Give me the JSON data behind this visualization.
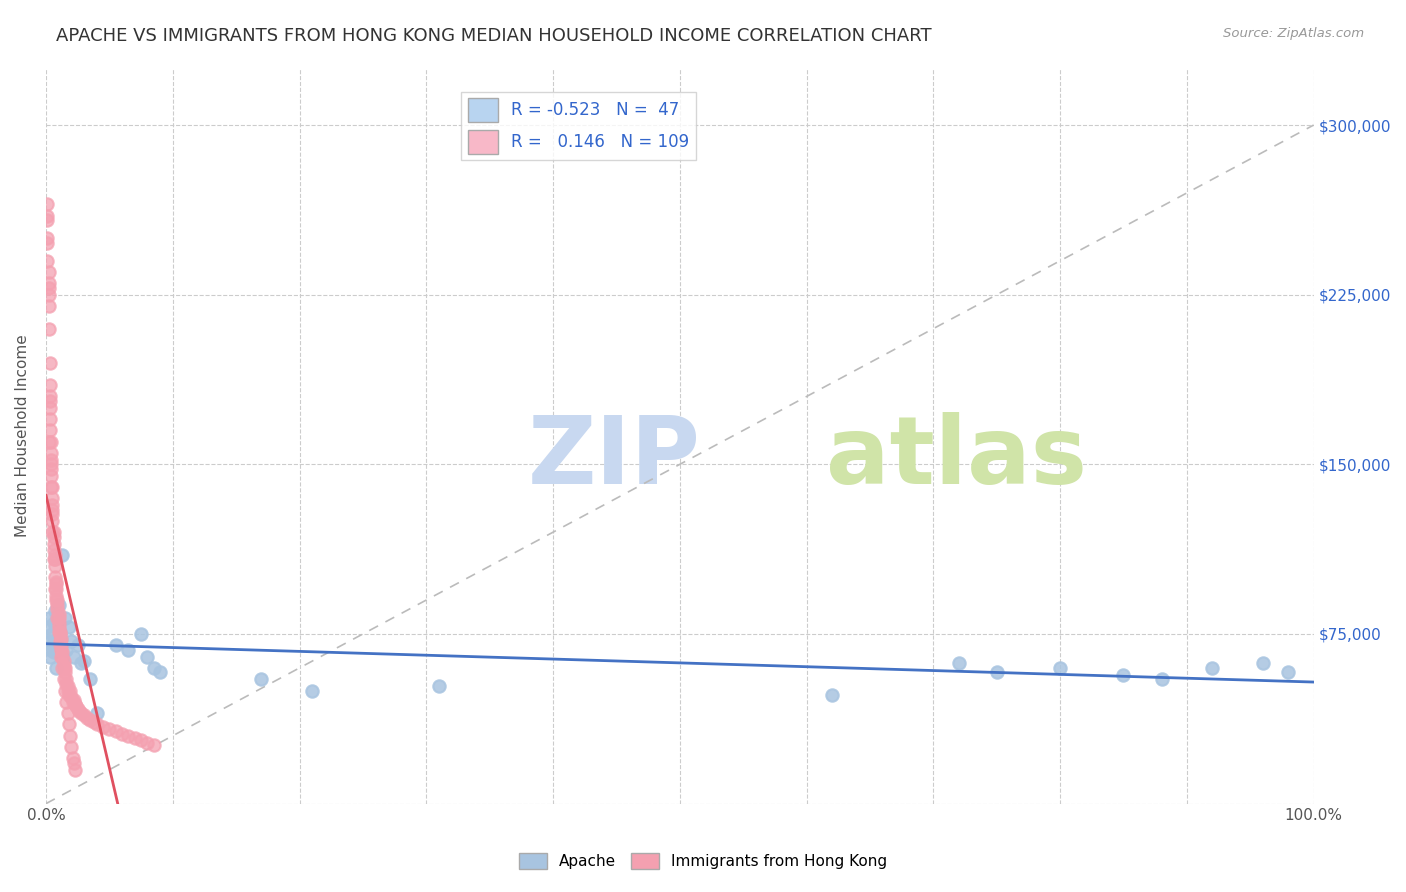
{
  "title": "APACHE VS IMMIGRANTS FROM HONG KONG MEDIAN HOUSEHOLD INCOME CORRELATION CHART",
  "source": "Source: ZipAtlas.com",
  "ylabel": "Median Household Income",
  "yticks": [
    0,
    75000,
    150000,
    225000,
    300000
  ],
  "ytick_labels": [
    "",
    "$75,000",
    "$150,000",
    "$225,000",
    "$300,000"
  ],
  "ylim": [
    0,
    325000
  ],
  "xlim": [
    0.0,
    1.0
  ],
  "apache_R": -0.523,
  "apache_N": 47,
  "hk_R": 0.146,
  "hk_N": 109,
  "apache_color": "#a8c4e0",
  "hk_color": "#f4a0b0",
  "apache_line_color": "#4472c4",
  "hk_line_color": "#e05060",
  "legend_box_apache": "#b8d4f0",
  "legend_box_hk": "#f8b8c8",
  "title_fontsize": 13,
  "axis_label_fontsize": 11,
  "tick_fontsize": 11,
  "watermark_zip": "ZIP",
  "watermark_atlas": "atlas",
  "watermark_color_zip": "#c8d8f0",
  "watermark_color_atlas": "#d0e4a8",
  "apache_x": [
    0.001,
    0.002,
    0.003,
    0.003,
    0.004,
    0.005,
    0.005,
    0.006,
    0.007,
    0.007,
    0.008,
    0.009,
    0.01,
    0.01,
    0.011,
    0.012,
    0.013,
    0.015,
    0.016,
    0.018,
    0.02,
    0.022,
    0.025,
    0.028,
    0.03,
    0.035,
    0.04,
    0.055,
    0.065,
    0.075,
    0.08,
    0.085,
    0.09,
    0.17,
    0.21,
    0.31,
    0.62,
    0.72,
    0.75,
    0.8,
    0.85,
    0.88,
    0.92,
    0.96,
    0.98,
    0.006,
    0.008
  ],
  "apache_y": [
    78000,
    82000,
    72000,
    65000,
    68000,
    75000,
    70000,
    80000,
    72000,
    85000,
    78000,
    73000,
    70000,
    88000,
    76000,
    73000,
    110000,
    82000,
    68000,
    78000,
    72000,
    65000,
    70000,
    62000,
    63000,
    55000,
    40000,
    70000,
    68000,
    75000,
    65000,
    60000,
    58000,
    55000,
    50000,
    52000,
    48000,
    62000,
    58000,
    60000,
    57000,
    55000,
    60000,
    62000,
    58000,
    67000,
    60000
  ],
  "hk_x": [
    0.001,
    0.001,
    0.001,
    0.001,
    0.001,
    0.002,
    0.002,
    0.002,
    0.002,
    0.002,
    0.003,
    0.003,
    0.003,
    0.003,
    0.003,
    0.004,
    0.004,
    0.004,
    0.004,
    0.004,
    0.005,
    0.005,
    0.005,
    0.005,
    0.005,
    0.006,
    0.006,
    0.006,
    0.006,
    0.007,
    0.007,
    0.007,
    0.007,
    0.008,
    0.008,
    0.008,
    0.008,
    0.009,
    0.009,
    0.009,
    0.01,
    0.01,
    0.01,
    0.01,
    0.011,
    0.011,
    0.011,
    0.012,
    0.012,
    0.012,
    0.013,
    0.013,
    0.014,
    0.014,
    0.015,
    0.015,
    0.016,
    0.016,
    0.017,
    0.017,
    0.018,
    0.019,
    0.02,
    0.021,
    0.022,
    0.023,
    0.024,
    0.025,
    0.026,
    0.028,
    0.03,
    0.032,
    0.035,
    0.038,
    0.04,
    0.045,
    0.05,
    0.055,
    0.06,
    0.065,
    0.07,
    0.075,
    0.08,
    0.085,
    0.002,
    0.003,
    0.004,
    0.005,
    0.006,
    0.007,
    0.008,
    0.009,
    0.01,
    0.011,
    0.012,
    0.013,
    0.014,
    0.015,
    0.016,
    0.017,
    0.018,
    0.019,
    0.02,
    0.021,
    0.022,
    0.023,
    0.001,
    0.002,
    0.003,
    0.004,
    0.005
  ],
  "hk_y": [
    260000,
    250000,
    265000,
    248000,
    258000,
    225000,
    235000,
    220000,
    230000,
    228000,
    195000,
    185000,
    180000,
    175000,
    170000,
    155000,
    150000,
    145000,
    152000,
    148000,
    140000,
    135000,
    130000,
    128000,
    132000,
    120000,
    115000,
    118000,
    112000,
    108000,
    105000,
    110000,
    100000,
    97000,
    95000,
    98000,
    92000,
    88000,
    90000,
    86000,
    82000,
    80000,
    84000,
    78000,
    75000,
    72000,
    76000,
    70000,
    73000,
    68000,
    65000,
    67000,
    63000,
    61000,
    58000,
    60000,
    53000,
    55000,
    50000,
    52000,
    48000,
    50000,
    47000,
    45000,
    46000,
    44000,
    43000,
    42000,
    41000,
    40000,
    39000,
    38000,
    37000,
    36000,
    35000,
    34000,
    33000,
    32000,
    31000,
    30000,
    29000,
    28000,
    27000,
    26000,
    160000,
    178000,
    160000,
    125000,
    108000,
    95000,
    90000,
    82000,
    76000,
    70000,
    65000,
    60000,
    55000,
    50000,
    45000,
    40000,
    35000,
    30000,
    25000,
    20000,
    18000,
    15000,
    240000,
    210000,
    165000,
    140000,
    120000
  ]
}
